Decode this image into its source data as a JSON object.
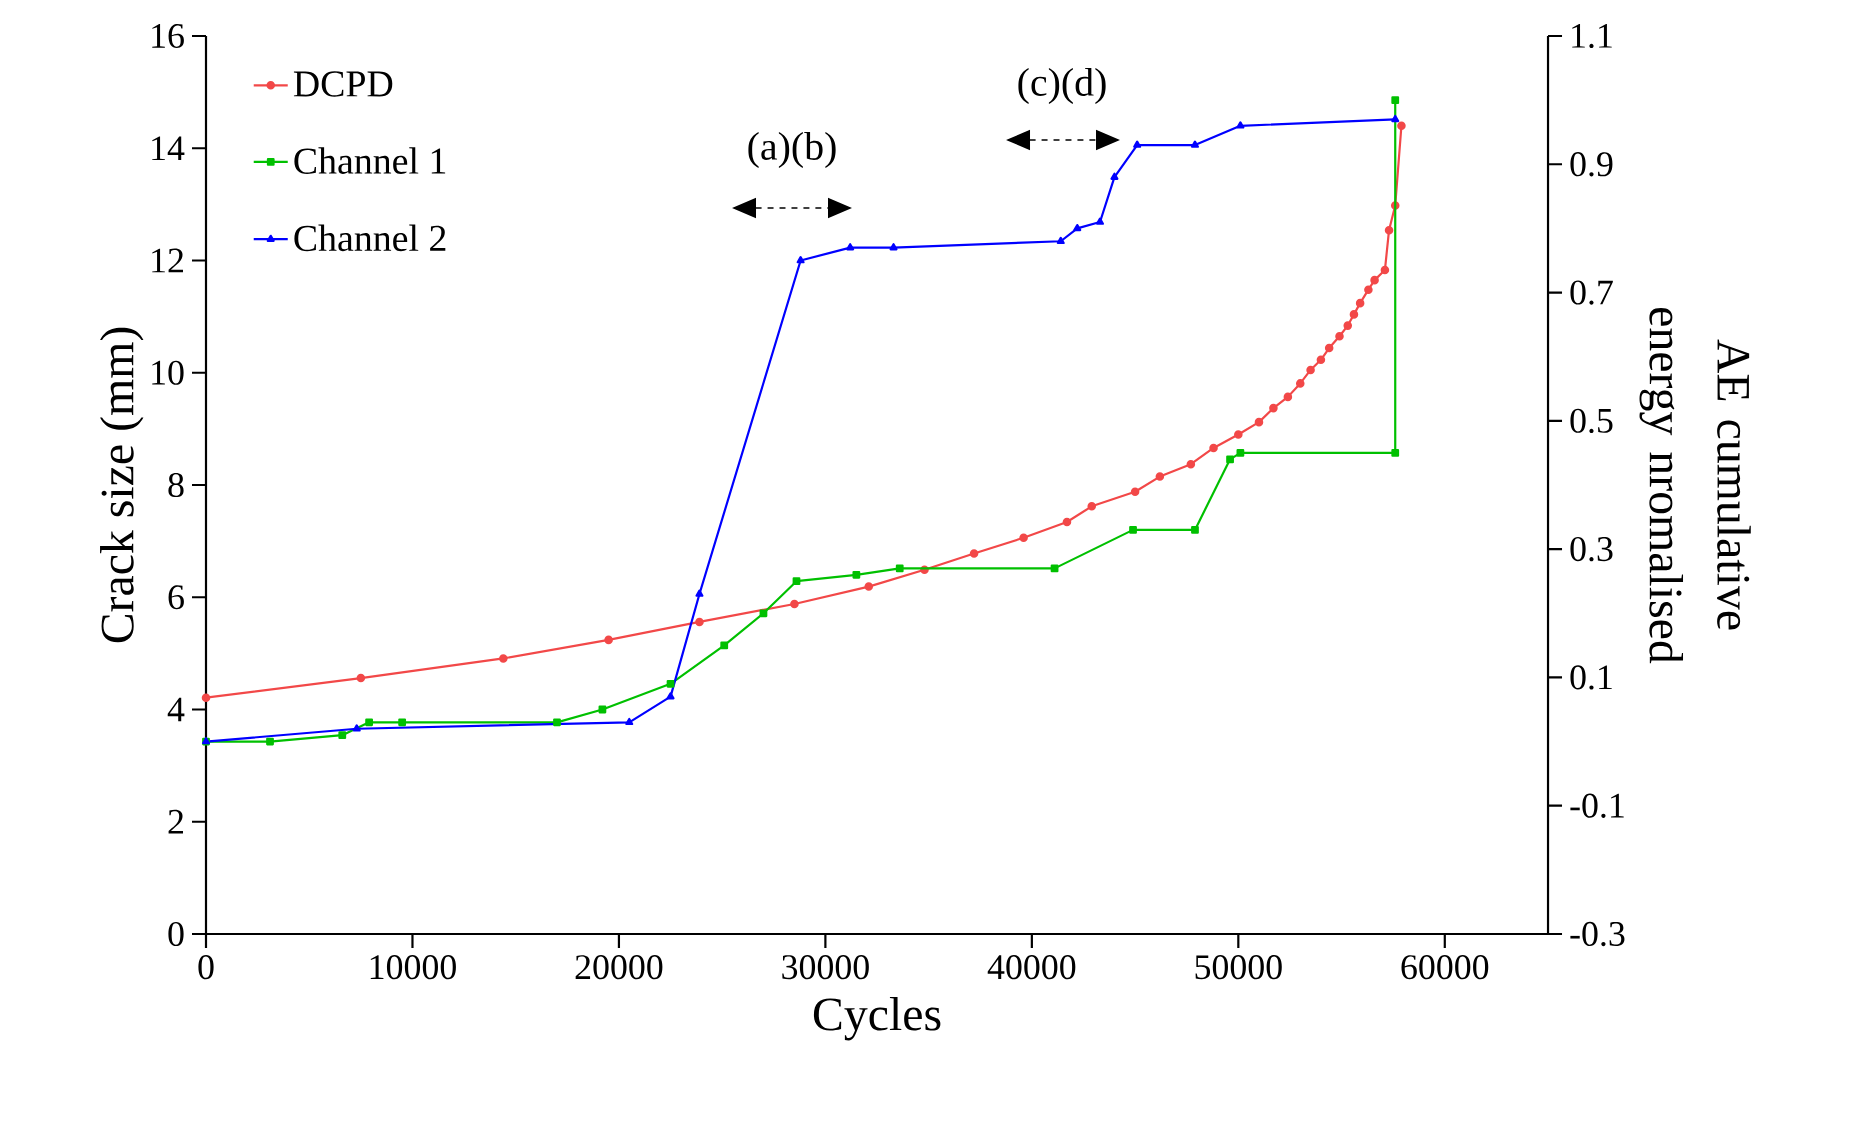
{
  "chart_data": {
    "type": "line",
    "xlabel": "Cycles",
    "ylabel": "Crack size (mm)",
    "y2label": "AE cumulative energy nromalised",
    "xlim": [
      0,
      65000
    ],
    "xticks": [
      0,
      10000,
      20000,
      30000,
      40000,
      50000,
      60000
    ],
    "ylim": [
      0,
      16
    ],
    "yticks": [
      0,
      2,
      4,
      6,
      8,
      10,
      12,
      14,
      16
    ],
    "y2lim": [
      -0.3,
      1.1
    ],
    "y2ticks": [
      -0.3,
      -0.1,
      0.1,
      0.3,
      0.5,
      0.7,
      0.9,
      1.1
    ],
    "legend": "top left",
    "line_style": "solid",
    "grid": false,
    "series": [
      {
        "name": "DCPD",
        "color": "#f24848",
        "marker": "circle",
        "x": [
          0,
          7500,
          14400,
          19500,
          23900,
          28500,
          32100,
          34800,
          37200,
          39600,
          41700,
          42900,
          45000,
          46200,
          47700,
          48800,
          50000,
          51000,
          51700,
          52400,
          53000,
          53500,
          54000,
          54400,
          54900,
          55300,
          55600,
          55900,
          56300,
          56600,
          57100,
          57300,
          57600,
          57900
        ],
        "values": [
          4.21,
          4.56,
          4.91,
          5.24,
          5.56,
          5.88,
          6.19,
          6.49,
          6.78,
          7.06,
          7.34,
          7.62,
          7.88,
          8.15,
          8.37,
          8.66,
          8.9,
          9.12,
          9.37,
          9.57,
          9.81,
          10.05,
          10.23,
          10.44,
          10.65,
          10.84,
          11.04,
          11.24,
          11.48,
          11.65,
          11.83,
          12.54,
          12.98,
          14.4
        ]
      },
      {
        "name": "Channel 1",
        "color": "#00c000",
        "marker": "square",
        "axis": "y2",
        "x": [
          0,
          3100,
          6600,
          7900,
          9500,
          17000,
          19200,
          22500,
          25100,
          27000,
          28600,
          31500,
          33600,
          41100,
          44900,
          47900,
          49600,
          50100,
          57600,
          57600
        ],
        "values": [
          0,
          0,
          0.01,
          0.03,
          0.03,
          0.03,
          0.05,
          0.09,
          0.15,
          0.2,
          0.25,
          0.26,
          0.27,
          0.27,
          0.33,
          0.33,
          0.44,
          0.45,
          0.45,
          1.0
        ]
      },
      {
        "name": "Channel 2",
        "color": "#0000ff",
        "marker": "triangle",
        "axis": "y2",
        "x": [
          0,
          7300,
          20500,
          22500,
          23900,
          28800,
          31200,
          33300,
          41400,
          42200,
          43300,
          44000,
          45100,
          47900,
          50100,
          57600
        ],
        "values": [
          0,
          0.02,
          0.03,
          0.07,
          0.23,
          0.75,
          0.77,
          0.77,
          0.78,
          0.8,
          0.81,
          0.88,
          0.93,
          0.93,
          0.96,
          0.97
        ]
      }
    ],
    "annotations": [
      "(a)(b)",
      "(c)(d)"
    ]
  }
}
